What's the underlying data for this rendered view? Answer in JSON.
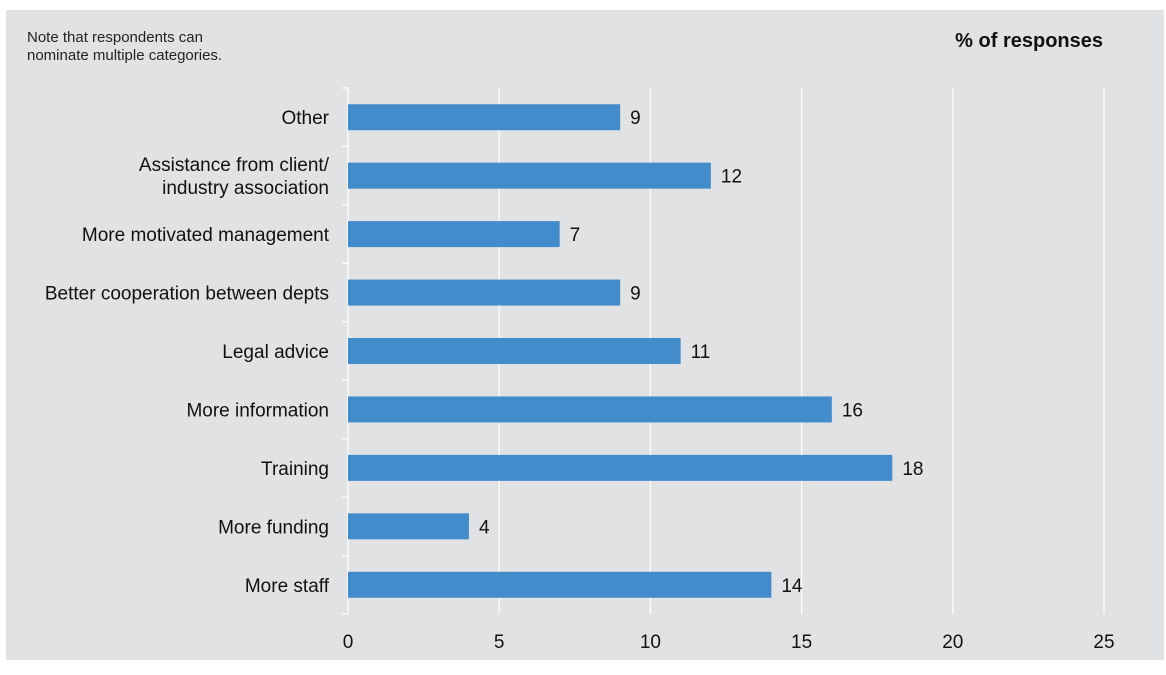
{
  "note": "Note that respondents can\nnominate multiple categories.",
  "colors": {
    "background": "#e1e2e4",
    "bar": "#438ccb",
    "gridline": "#ffffff"
  },
  "chart_data": {
    "type": "bar",
    "orientation": "horizontal",
    "title": "% of responses",
    "categories": [
      "Other",
      "Assistance from client/\nindustry association",
      "More motivated management",
      "Better cooperation between depts",
      "Legal advice",
      "More information",
      "Training",
      "More funding",
      "More staff"
    ],
    "values": [
      9,
      12,
      7,
      9,
      11,
      16,
      18,
      4,
      14
    ],
    "xlim": [
      0,
      25
    ],
    "xticks": [
      0,
      5,
      10,
      15,
      20,
      25
    ],
    "grid": true,
    "legend": "none"
  }
}
